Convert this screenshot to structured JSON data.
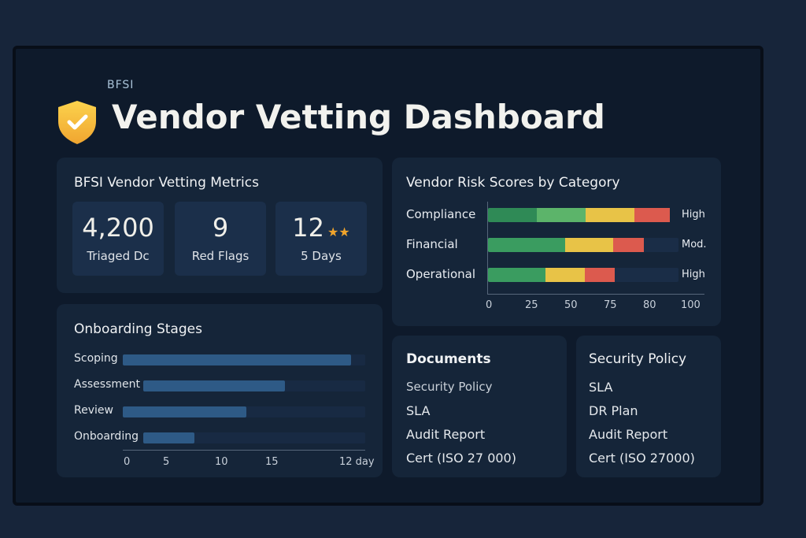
{
  "header": {
    "subtitle": "BFSI",
    "title": "Vendor Vetting Dashboard"
  },
  "metrics": {
    "title": "BFSI Vendor Vetting Metrics",
    "items": [
      {
        "value": "4,200",
        "label": "Triaged Dc"
      },
      {
        "value": "9",
        "label": "Red Flags"
      },
      {
        "value": "12",
        "label": "5 Days",
        "stars": "★★"
      }
    ]
  },
  "chart_data": [
    {
      "type": "bar",
      "title": "Vendor Risk Scores by Category",
      "stacked": true,
      "categories": [
        "Compliance",
        "Financial",
        "Operational"
      ],
      "segments": [
        [
          {
            "value": 24.6,
            "color": "#2f8a56"
          },
          {
            "value": 24.6,
            "color": "#5cb46a"
          },
          {
            "value": 24.6,
            "color": "#e8c347"
          },
          {
            "value": 17.9,
            "color": "#dc5a4e"
          }
        ],
        [
          {
            "value": 39,
            "color": "#3a9c60"
          },
          {
            "value": 24,
            "color": "#e8c347"
          },
          {
            "value": 15.5,
            "color": "#dc5a4e"
          }
        ],
        [
          {
            "value": 29,
            "color": "#3a9c60"
          },
          {
            "value": 20,
            "color": "#e8c347"
          },
          {
            "value": 15,
            "color": "#dc5a4e"
          }
        ]
      ],
      "tags": [
        "High",
        "Mod.",
        "High"
      ],
      "xticks": [
        "0",
        "25",
        "50",
        "75",
        "80",
        "100"
      ],
      "xlim": [
        0,
        100
      ]
    },
    {
      "type": "bar",
      "title": "Onboarding Stages",
      "categories": [
        "Scoping",
        "Assessment",
        "Review",
        "Onboarding"
      ],
      "fill_percent": [
        94,
        64,
        51,
        23
      ],
      "xticks": [
        "0",
        "5",
        "10",
        "15",
        "12 day"
      ]
    }
  ],
  "documents": {
    "title": "Documents",
    "items": [
      "Security Policy",
      "SLA",
      "Audit Report",
      "Cert (ISO 27 000)"
    ]
  },
  "policy": {
    "title": "Security Policy",
    "items": [
      "SLA",
      "DR Plan",
      "Audit Report",
      "Cert (ISO 27000)"
    ]
  }
}
